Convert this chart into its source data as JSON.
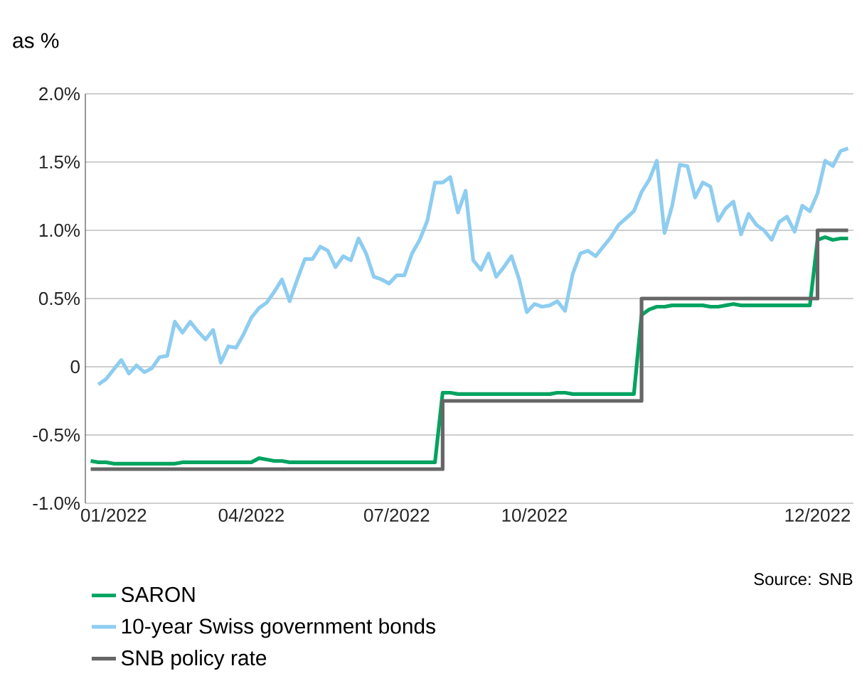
{
  "chart_data": {
    "type": "line",
    "ylabel": "as %",
    "annotations": [
      "Source: SNB"
    ],
    "categories": [
      null,
      null,
      null,
      "01/2022",
      null,
      null,
      null,
      null,
      null,
      null,
      null,
      null,
      null,
      null,
      null,
      null,
      null,
      null,
      null,
      null,
      null,
      "04/2022",
      null,
      null,
      null,
      null,
      null,
      null,
      null,
      null,
      null,
      null,
      null,
      null,
      null,
      null,
      null,
      null,
      null,
      null,
      "07/2022",
      null,
      null,
      null,
      null,
      null,
      null,
      null,
      null,
      null,
      null,
      null,
      null,
      null,
      null,
      null,
      null,
      null,
      "10/2022",
      null,
      null,
      null,
      null,
      null,
      null,
      null,
      null,
      null,
      null,
      null,
      null,
      null,
      null,
      null,
      null,
      null,
      null,
      null,
      null,
      null,
      null,
      null,
      null,
      null,
      null,
      null,
      null,
      null,
      null,
      null,
      null,
      null,
      null,
      null,
      null,
      "12/2022",
      null,
      null,
      null,
      null
    ],
    "ylim": [
      -1.0,
      2.0
    ],
    "yticks": [
      {
        "value": -1.0,
        "label": "-1.0%"
      },
      {
        "value": -0.5,
        "label": "-0.5%"
      },
      {
        "value": 0,
        "label": "0"
      },
      {
        "value": 0.5,
        "label": "0.5%"
      },
      {
        "value": 1.0,
        "label": "1.0%"
      },
      {
        "value": 1.5,
        "label": "1.5%"
      },
      {
        "value": 2.0,
        "label": "2.0%"
      }
    ],
    "grid": "y",
    "legend": "bottom",
    "marker": "none",
    "line_style": "solid",
    "series": [
      {
        "name": "SARON",
        "color": "#00a35f",
        "values": [
          -0.69,
          -0.7,
          -0.7,
          -0.71,
          -0.71,
          -0.71,
          -0.71,
          -0.71,
          -0.71,
          -0.71,
          -0.71,
          -0.71,
          -0.7,
          -0.7,
          -0.7,
          -0.7,
          -0.7,
          -0.7,
          -0.7,
          -0.7,
          -0.7,
          -0.7,
          -0.67,
          -0.68,
          -0.69,
          -0.69,
          -0.7,
          -0.7,
          -0.7,
          -0.7,
          -0.7,
          -0.7,
          -0.7,
          -0.7,
          -0.7,
          -0.7,
          -0.7,
          -0.7,
          -0.7,
          -0.7,
          -0.7,
          -0.7,
          -0.7,
          -0.7,
          -0.7,
          -0.7,
          -0.19,
          -0.19,
          -0.2,
          -0.2,
          -0.2,
          -0.2,
          -0.2,
          -0.2,
          -0.2,
          -0.2,
          -0.2,
          -0.2,
          -0.2,
          -0.2,
          -0.2,
          -0.19,
          -0.19,
          -0.2,
          -0.2,
          -0.2,
          -0.2,
          -0.2,
          -0.2,
          -0.2,
          -0.2,
          -0.2,
          0.38,
          0.42,
          0.44,
          0.44,
          0.45,
          0.45,
          0.45,
          0.45,
          0.45,
          0.44,
          0.44,
          0.45,
          0.46,
          0.45,
          0.45,
          0.45,
          0.45,
          0.45,
          0.45,
          0.45,
          0.45,
          0.45,
          0.45,
          0.93,
          0.95,
          0.93,
          0.94,
          0.94
        ]
      },
      {
        "name": "10-year Swiss government bonds",
        "color": "#8ecdf0",
        "values": [
          null,
          -0.13,
          -0.09,
          -0.02,
          0.05,
          -0.05,
          0.01,
          -0.04,
          -0.01,
          0.07,
          0.08,
          0.33,
          0.25,
          0.33,
          0.26,
          0.2,
          0.27,
          0.03,
          0.15,
          0.14,
          0.24,
          0.36,
          0.43,
          0.47,
          0.55,
          0.64,
          0.48,
          0.64,
          0.79,
          0.79,
          0.88,
          0.85,
          0.73,
          0.81,
          0.78,
          0.94,
          0.83,
          0.66,
          0.64,
          0.61,
          0.67,
          0.67,
          0.83,
          0.93,
          1.07,
          1.35,
          1.35,
          1.39,
          1.13,
          1.29,
          0.78,
          0.71,
          0.83,
          0.66,
          0.73,
          0.81,
          0.64,
          0.4,
          0.46,
          0.44,
          0.45,
          0.48,
          0.41,
          0.68,
          0.83,
          0.85,
          0.81,
          0.88,
          0.95,
          1.04,
          1.09,
          1.14,
          1.28,
          1.37,
          1.51,
          0.98,
          1.18,
          1.48,
          1.47,
          1.24,
          1.35,
          1.32,
          1.07,
          1.16,
          1.21,
          0.97,
          1.12,
          1.04,
          1.0,
          0.93,
          1.06,
          1.1,
          0.99,
          1.18,
          1.14,
          1.27,
          1.51,
          1.47,
          1.58,
          1.6
        ]
      },
      {
        "name": "SNB policy rate",
        "type": "step",
        "color": "#666666",
        "values": [
          -0.75,
          -0.75,
          -0.75,
          -0.75,
          -0.75,
          -0.75,
          -0.75,
          -0.75,
          -0.75,
          -0.75,
          -0.75,
          -0.75,
          -0.75,
          -0.75,
          -0.75,
          -0.75,
          -0.75,
          -0.75,
          -0.75,
          -0.75,
          -0.75,
          -0.75,
          -0.75,
          -0.75,
          -0.75,
          -0.75,
          -0.75,
          -0.75,
          -0.75,
          -0.75,
          -0.75,
          -0.75,
          -0.75,
          -0.75,
          -0.75,
          -0.75,
          -0.75,
          -0.75,
          -0.75,
          -0.75,
          -0.75,
          -0.75,
          -0.75,
          -0.75,
          -0.75,
          -0.75,
          -0.25,
          -0.25,
          -0.25,
          -0.25,
          -0.25,
          -0.25,
          -0.25,
          -0.25,
          -0.25,
          -0.25,
          -0.25,
          -0.25,
          -0.25,
          -0.25,
          -0.25,
          -0.25,
          -0.25,
          -0.25,
          -0.25,
          -0.25,
          -0.25,
          -0.25,
          -0.25,
          -0.25,
          -0.25,
          -0.25,
          0.5,
          0.5,
          0.5,
          0.5,
          0.5,
          0.5,
          0.5,
          0.5,
          0.5,
          0.5,
          0.5,
          0.5,
          0.5,
          0.5,
          0.5,
          0.5,
          0.5,
          0.5,
          0.5,
          0.5,
          0.5,
          0.5,
          0.5,
          1.0,
          1.0,
          1.0,
          1.0,
          1.0
        ]
      }
    ]
  }
}
